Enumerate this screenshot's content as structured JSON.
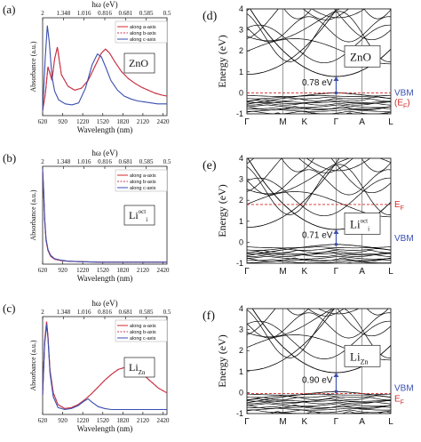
{
  "colors": {
    "a_axis": "#d22a2a",
    "b_axis": "#c03a5a",
    "c_axis": "#3a4fb0",
    "fermi": "#d22a2a",
    "vbm": "#3a4fb0",
    "arrow": "#3a4fb0",
    "bands": "#000000"
  },
  "chart_data": [
    {
      "type": "line",
      "panel": "(a)",
      "label": "ZnO",
      "xlabel": "Wavelength (nm)",
      "ylabel": "Absorbance (a.u.)",
      "top_xlabel": "hω (eV)",
      "xlim": [
        620,
        2480
      ],
      "x_ticks": [
        "620",
        "920",
        "1220",
        "1520",
        "1820",
        "2120",
        "2420"
      ],
      "top_ticks": [
        "2",
        "1.348",
        "1.016",
        "0.816",
        "0.681",
        "0.585",
        "0.5"
      ],
      "legend": [
        "along a-axis",
        "along b-axis",
        "along c-axis"
      ],
      "legend_position": "top-right",
      "series": [
        {
          "name": "along a-axis",
          "x": [
            620,
            660,
            700,
            760,
            800,
            840,
            900,
            1000,
            1100,
            1200,
            1300,
            1400,
            1500,
            1560,
            1620,
            1700,
            1800,
            1900,
            2000,
            2100,
            2200,
            2300,
            2400,
            2480
          ],
          "y": [
            0.05,
            0.22,
            0.5,
            0.36,
            0.58,
            0.7,
            0.42,
            0.3,
            0.26,
            0.28,
            0.36,
            0.5,
            0.64,
            0.68,
            0.64,
            0.55,
            0.45,
            0.38,
            0.33,
            0.29,
            0.26,
            0.23,
            0.21,
            0.2
          ]
        },
        {
          "name": "along b-axis",
          "x": [
            620,
            660,
            700,
            760,
            800,
            840,
            900,
            1000,
            1100,
            1200,
            1300,
            1400,
            1500,
            1560,
            1620,
            1700,
            1800,
            1900,
            2000,
            2100,
            2200,
            2300,
            2400,
            2480
          ],
          "y": [
            0.05,
            0.22,
            0.5,
            0.36,
            0.58,
            0.7,
            0.42,
            0.3,
            0.26,
            0.28,
            0.36,
            0.5,
            0.64,
            0.68,
            0.64,
            0.55,
            0.45,
            0.38,
            0.33,
            0.29,
            0.26,
            0.23,
            0.21,
            0.2
          ]
        },
        {
          "name": "along c-axis",
          "x": [
            620,
            660,
            690,
            720,
            760,
            800,
            860,
            960,
            1060,
            1160,
            1260,
            1360,
            1440,
            1500,
            1560,
            1640,
            1740,
            1840,
            1940,
            2040,
            2140,
            2240,
            2340,
            2480
          ],
          "y": [
            0.05,
            0.6,
            0.92,
            0.75,
            0.4,
            0.25,
            0.16,
            0.12,
            0.11,
            0.13,
            0.28,
            0.52,
            0.63,
            0.6,
            0.5,
            0.36,
            0.26,
            0.2,
            0.17,
            0.15,
            0.14,
            0.13,
            0.12,
            0.12
          ]
        }
      ]
    },
    {
      "type": "line",
      "panel": "(b)",
      "label": "Li",
      "label_sub": "i",
      "label_sup": "oct",
      "xlabel": "Wavelength (nm)",
      "ylabel": "Absorbance (a.u.)",
      "top_xlabel": "hω (eV)",
      "xlim": [
        620,
        2480
      ],
      "x_ticks": [
        "620",
        "920",
        "1220",
        "1520",
        "1820",
        "2120",
        "2420"
      ],
      "top_ticks": [
        "2",
        "1.348",
        "1.016",
        "0.816",
        "0.681",
        "0.585",
        "0.5"
      ],
      "legend": [
        "along a-axis",
        "along b-axis",
        "along c-axis"
      ],
      "legend_position": "top-right",
      "series": [
        {
          "name": "along a-axis",
          "x": [
            620,
            635,
            650,
            670,
            700,
            740,
            800,
            900,
            1000,
            1200,
            1500,
            1800,
            2100,
            2480
          ],
          "y": [
            0.95,
            0.75,
            0.45,
            0.25,
            0.14,
            0.08,
            0.05,
            0.035,
            0.03,
            0.025,
            0.02,
            0.02,
            0.02,
            0.02
          ]
        },
        {
          "name": "along b-axis",
          "x": [
            620,
            635,
            650,
            670,
            700,
            740,
            800,
            900,
            1000,
            1200,
            1500,
            1800,
            2100,
            2480
          ],
          "y": [
            0.93,
            0.73,
            0.44,
            0.24,
            0.14,
            0.08,
            0.05,
            0.035,
            0.03,
            0.025,
            0.02,
            0.02,
            0.02,
            0.02
          ]
        },
        {
          "name": "along c-axis",
          "x": [
            620,
            635,
            650,
            670,
            700,
            740,
            800,
            900,
            1000,
            1200,
            1500,
            1800,
            2100,
            2480
          ],
          "y": [
            0.97,
            0.77,
            0.47,
            0.26,
            0.15,
            0.09,
            0.055,
            0.04,
            0.03,
            0.025,
            0.02,
            0.02,
            0.02,
            0.02
          ]
        }
      ]
    },
    {
      "type": "line",
      "panel": "(c)",
      "label": "Li",
      "label_sub": "Zn",
      "xlabel": "Wavelength (nm)",
      "ylabel": "Absorbance (a.u.)",
      "top_xlabel": "hω (eV)",
      "xlim": [
        620,
        2480
      ],
      "x_ticks": [
        "620",
        "920",
        "1220",
        "1520",
        "1820",
        "2120",
        "2420"
      ],
      "top_ticks": [
        "2",
        "1.348",
        "1.016",
        "0.816",
        "0.681",
        "0.585",
        "0.5"
      ],
      "legend": [
        "along a-axis",
        "along b-axis",
        "along c-axis"
      ],
      "legend_position": "top-right",
      "series": [
        {
          "name": "along a-axis",
          "x": [
            620,
            650,
            680,
            700,
            730,
            780,
            850,
            950,
            1050,
            1150,
            1250,
            1350,
            1450,
            1550,
            1650,
            1750,
            1850,
            1950,
            2050,
            2150,
            2250,
            2350,
            2480
          ],
          "y": [
            0.2,
            0.75,
            0.95,
            0.8,
            0.45,
            0.22,
            0.1,
            0.06,
            0.07,
            0.1,
            0.15,
            0.21,
            0.28,
            0.35,
            0.41,
            0.46,
            0.48,
            0.47,
            0.44,
            0.39,
            0.33,
            0.27,
            0.22
          ]
        },
        {
          "name": "along b-axis",
          "x": [
            620,
            650,
            680,
            700,
            730,
            780,
            850,
            950,
            1050,
            1150,
            1250,
            1350,
            1450,
            1550,
            1650,
            1750,
            1850,
            1950,
            2050,
            2150,
            2250,
            2350,
            2480
          ],
          "y": [
            0.2,
            0.75,
            0.95,
            0.8,
            0.45,
            0.22,
            0.1,
            0.06,
            0.07,
            0.1,
            0.15,
            0.21,
            0.28,
            0.35,
            0.41,
            0.46,
            0.48,
            0.47,
            0.44,
            0.39,
            0.33,
            0.27,
            0.22
          ]
        },
        {
          "name": "along c-axis",
          "x": [
            620,
            650,
            680,
            700,
            730,
            780,
            850,
            950,
            1050,
            1150,
            1250,
            1300,
            1350,
            1450,
            1550,
            1650,
            1750,
            1850,
            1950,
            2050,
            2150,
            2250,
            2350,
            2480
          ],
          "y": [
            0.2,
            0.72,
            0.92,
            0.78,
            0.42,
            0.18,
            0.07,
            0.05,
            0.06,
            0.09,
            0.14,
            0.16,
            0.13,
            0.08,
            0.06,
            0.05,
            0.05,
            0.05,
            0.05,
            0.05,
            0.05,
            0.05,
            0.05,
            0.05
          ]
        }
      ]
    },
    {
      "type": "line",
      "panel": "(d)",
      "label": "ZnO",
      "ylabel": "Energy (eV)",
      "ylim": [
        -1,
        4
      ],
      "y_ticks": [
        "-1",
        "0",
        "1",
        "2",
        "3",
        "4"
      ],
      "kpoints": [
        "Γ",
        "M",
        "K",
        "Γ",
        "A",
        "L"
      ],
      "fermi_level": 0,
      "fermi_label": "(E",
      "fermi_label_sub": "F",
      "fermi_label_tail": ")",
      "vbm_label": "VBM",
      "gap_label": "0.78 eV",
      "gap": 0.78
    },
    {
      "type": "line",
      "panel": "(e)",
      "label": "Li",
      "label_sub": "i",
      "label_sup": "oct",
      "ylabel": "Energy (eV)",
      "ylim": [
        -1,
        4
      ],
      "y_ticks": [
        "-1",
        "0",
        "1",
        "2",
        "3",
        "4"
      ],
      "kpoints": [
        "Γ",
        "M",
        "K",
        "Γ",
        "A",
        "L"
      ],
      "fermi_level": 1.8,
      "fermi_label": "E",
      "fermi_label_sub": "F",
      "vbm_label": "VBM",
      "gap_label": "0.71 eV",
      "gap": 0.71
    },
    {
      "type": "line",
      "panel": "(f)",
      "label": "Li",
      "label_sub": "Zn",
      "ylabel": "Energy (eV)",
      "ylim": [
        -1,
        4
      ],
      "y_ticks": [
        "-1",
        "0",
        "1",
        "2",
        "3",
        "4"
      ],
      "kpoints": [
        "Γ",
        "M",
        "K",
        "Γ",
        "A",
        "L"
      ],
      "fermi_level": -0.05,
      "fermi_label": "E",
      "fermi_label_sub": "F",
      "vbm_label": "VBM",
      "gap_label": "0.90 eV",
      "gap": 0.9
    }
  ]
}
